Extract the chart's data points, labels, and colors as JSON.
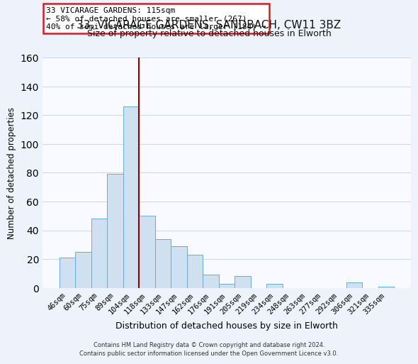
{
  "title_line1": "33, VICARAGE GARDENS, SANDBACH, CW11 3BZ",
  "title_line2": "Size of property relative to detached houses in Elworth",
  "xlabel": "Distribution of detached houses by size in Elworth",
  "ylabel": "Number of detached properties",
  "bar_labels": [
    "46sqm",
    "60sqm",
    "75sqm",
    "89sqm",
    "104sqm",
    "118sqm",
    "133sqm",
    "147sqm",
    "162sqm",
    "176sqm",
    "191sqm",
    "205sqm",
    "219sqm",
    "234sqm",
    "248sqm",
    "263sqm",
    "277sqm",
    "292sqm",
    "306sqm",
    "321sqm",
    "335sqm"
  ],
  "bar_values": [
    21,
    25,
    48,
    79,
    126,
    50,
    34,
    29,
    23,
    9,
    3,
    8,
    0,
    3,
    0,
    0,
    0,
    0,
    4,
    0,
    1
  ],
  "bar_color": "#cfe0f0",
  "bar_edge_color": "#6aaad4",
  "vline_color": "#8b0000",
  "ylim": [
    0,
    160
  ],
  "yticks": [
    0,
    20,
    40,
    60,
    80,
    100,
    120,
    140,
    160
  ],
  "annotation_line1": "33 VICARAGE GARDENS: 115sqm",
  "annotation_line2": "← 58% of detached houses are smaller (267)",
  "annotation_line3": "40% of semi-detached houses are larger (184) →",
  "footer_line1": "Contains HM Land Registry data © Crown copyright and database right 2024.",
  "footer_line2": "Contains public sector information licensed under the Open Government Licence v3.0.",
  "bg_color": "#eef2fa",
  "plot_bg_color": "#f8faff",
  "grid_color": "#d0d8e8"
}
